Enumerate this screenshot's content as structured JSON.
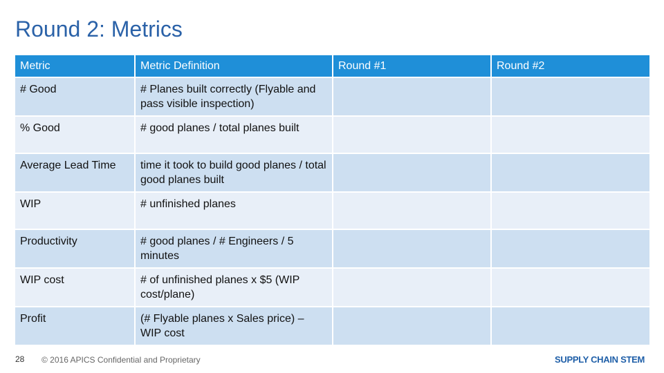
{
  "header": {
    "title": "Round 2: Metrics"
  },
  "table": {
    "columns": [
      "Metric",
      "Metric Definition",
      "Round #1",
      "Round #2"
    ],
    "rows": [
      [
        "# Good",
        "# Planes built correctly (Flyable and pass visible inspection)"
      ],
      [
        "% Good",
        "# good planes / total planes built"
      ],
      [
        "Average Lead Time",
        "time it took to build good planes / total good planes built"
      ],
      [
        "WIP",
        "# unfinished planes"
      ],
      [
        "Productivity",
        "# good planes /     # Engineers / 5 minutes"
      ],
      [
        "WIP cost",
        "# of unfinished planes x $5 (WIP cost/plane)"
      ],
      [
        "Profit",
        "(# Flyable planes x Sales price) – WIP cost"
      ]
    ]
  },
  "footer": {
    "page_number": "28",
    "copyright": "© 2016 APICS Confidential and Proprietary",
    "logo": "SUPPLY CHAIN STEM"
  }
}
